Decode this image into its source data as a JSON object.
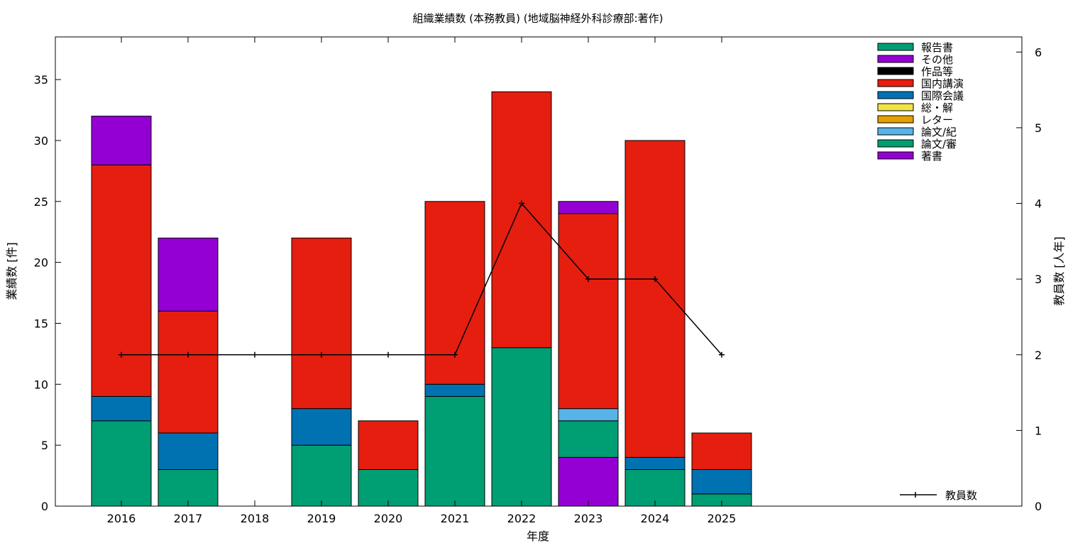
{
  "chart_data": {
    "type": "bar",
    "stacked": true,
    "title": "組織業績数 (本務教員) (地域脳神経外科診療部:著作)",
    "xlabel": "年度",
    "ylabel": "業績数 [件]",
    "y2label": "教員数 [人年]",
    "categories": [
      "2016",
      "2017",
      "2018",
      "2019",
      "2020",
      "2021",
      "2022",
      "2023",
      "2024",
      "2025"
    ],
    "ylim": [
      0,
      38.5
    ],
    "yticks": [
      0,
      5,
      10,
      15,
      20,
      25,
      30,
      35
    ],
    "y2lim": [
      0,
      6.2
    ],
    "y2ticks": [
      0,
      1,
      2,
      3,
      4,
      5,
      6
    ],
    "legend_position": "top-right",
    "series": [
      {
        "name": "著書",
        "color": "#9400d3",
        "values": [
          0,
          0,
          0,
          0,
          0,
          0,
          0,
          4,
          0,
          0
        ]
      },
      {
        "name": "論文/審",
        "color": "#009e73",
        "values": [
          7,
          3,
          0,
          5,
          3,
          9,
          13,
          3,
          3,
          1
        ]
      },
      {
        "name": "論文/紀",
        "color": "#56b4e9",
        "values": [
          0,
          0,
          0,
          0,
          0,
          0,
          0,
          1,
          0,
          0
        ]
      },
      {
        "name": "レター",
        "color": "#e69f00",
        "values": [
          0,
          0,
          0,
          0,
          0,
          0,
          0,
          0,
          0,
          0
        ]
      },
      {
        "name": "総・解",
        "color": "#f0e442",
        "values": [
          0,
          0,
          0,
          0,
          0,
          0,
          0,
          0,
          0,
          0
        ]
      },
      {
        "name": "国際会議",
        "color": "#0072b2",
        "values": [
          2,
          3,
          0,
          3,
          0,
          1,
          0,
          0,
          1,
          2
        ]
      },
      {
        "name": "国内講演",
        "color": "#e51e10",
        "values": [
          19,
          10,
          0,
          14,
          4,
          15,
          21,
          16,
          26,
          3
        ]
      },
      {
        "name": "作品等",
        "color": "#000000",
        "values": [
          0,
          0,
          0,
          0,
          0,
          0,
          0,
          0,
          0,
          0
        ]
      },
      {
        "name": "その他",
        "color": "#9400d3",
        "values": [
          4,
          6,
          0,
          0,
          0,
          0,
          0,
          1,
          0,
          0
        ]
      },
      {
        "name": "報告書",
        "color": "#009e73",
        "values": [
          0,
          0,
          0,
          0,
          0,
          0,
          0,
          0,
          0,
          0
        ]
      }
    ],
    "legend_order": [
      "報告書",
      "その他",
      "作品等",
      "国内講演",
      "国際会議",
      "総・解",
      "レター",
      "論文/紀",
      "論文/審",
      "著書"
    ],
    "line_series": {
      "name": "教員数",
      "axis": "y2",
      "color": "#000000",
      "values": [
        2,
        2,
        2,
        2,
        2,
        2,
        4,
        3,
        3,
        2
      ]
    }
  }
}
